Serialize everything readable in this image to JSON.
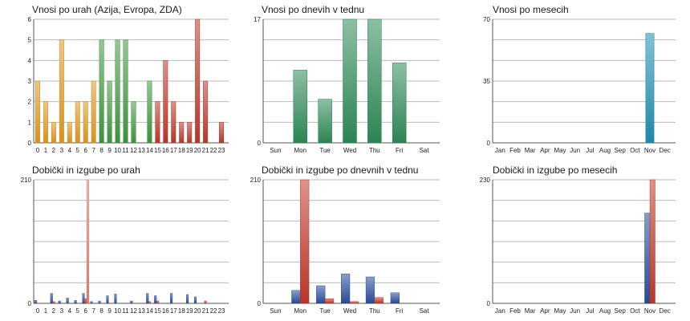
{
  "chart_data": [
    {
      "type": "bar",
      "title": "Vnosi po urah (Azija, Evropa, ZDA)",
      "categories": [
        "0",
        "1",
        "2",
        "3",
        "4",
        "5",
        "6",
        "7",
        "8",
        "9",
        "10",
        "11",
        "12",
        "13",
        "14",
        "15",
        "16",
        "17",
        "18",
        "19",
        "20",
        "21",
        "22",
        "23"
      ],
      "values": [
        3,
        2,
        1,
        5,
        1,
        2,
        2,
        3,
        5,
        3,
        5,
        5,
        2,
        0,
        3,
        2,
        4,
        2,
        1,
        1,
        6,
        3,
        0,
        1
      ],
      "bar_colors": [
        "#e09a22",
        "#e09a22",
        "#e09a22",
        "#e09a22",
        "#e09a22",
        "#e09a22",
        "#e09a22",
        "#e09a22",
        "#3e9a3e",
        "#3e9a3e",
        "#3e9a3e",
        "#3e9a3e",
        "#3e9a3e",
        "#3e9a3e",
        "#3e9a3e",
        "#c0392b",
        "#c0392b",
        "#c0392b",
        "#c0392b",
        "#c0392b",
        "#c0392b",
        "#c0392b",
        "#c0392b",
        "#c0392b"
      ],
      "ylim": [
        0,
        6
      ],
      "yticks": [
        "0",
        "1",
        "2",
        "3",
        "4",
        "5",
        "6"
      ],
      "grid": true
    },
    {
      "type": "bar",
      "title": "Vnosi po dnevih v tednu",
      "categories": [
        "Sun",
        "Mon",
        "Tue",
        "Wed",
        "Thu",
        "Fri",
        "Sat"
      ],
      "values": [
        0,
        10,
        6,
        17,
        17,
        11,
        0
      ],
      "bar_colors": [
        "#2e8b57"
      ],
      "ylim": [
        0,
        17
      ],
      "yticks": [
        "0",
        "17"
      ],
      "grid": true
    },
    {
      "type": "bar",
      "title": "Vnosi po mesecih",
      "categories": [
        "Jan",
        "Feb",
        "Mar",
        "Apr",
        "May",
        "Jun",
        "Jul",
        "Aug",
        "Sep",
        "Oct",
        "Nov",
        "Dec"
      ],
      "values": [
        0,
        0,
        0,
        0,
        0,
        0,
        0,
        0,
        0,
        0,
        62,
        0
      ],
      "bar_colors": [
        "#1f8fb0"
      ],
      "ylim": [
        0,
        70
      ],
      "yticks": [
        "0",
        "35",
        "70"
      ],
      "grid": true
    },
    {
      "type": "bar",
      "title": "Dobički in izgube po urah",
      "categories": [
        "0",
        "1",
        "2",
        "3",
        "4",
        "5",
        "6",
        "7",
        "8",
        "9",
        "10",
        "11",
        "12",
        "13",
        "14",
        "15",
        "16",
        "17",
        "18",
        "19",
        "20",
        "21",
        "22",
        "23"
      ],
      "series": [
        {
          "values": [
            5,
            0,
            17,
            4,
            9,
            5,
            17,
            3,
            4,
            13,
            16,
            0,
            4,
            0,
            17,
            13,
            0,
            17,
            0,
            15,
            11,
            0,
            0,
            0
          ],
          "color": "#2a4d9c"
        },
        {
          "values": [
            0,
            0,
            3,
            0,
            0,
            0,
            8,
            0,
            0,
            0,
            0,
            0,
            0,
            0,
            3,
            4,
            0,
            0,
            0,
            0,
            0,
            4,
            0,
            0
          ],
          "color": "#c0392b"
        },
        {
          "values": [
            0,
            0,
            0,
            0,
            0,
            0,
            210,
            0,
            0,
            0,
            0,
            0,
            0,
            0,
            0,
            0,
            0,
            0,
            0,
            0,
            0,
            0,
            0,
            0
          ],
          "color": "#e8806f"
        }
      ],
      "ylim": [
        0,
        210
      ],
      "yticks": [
        "0",
        "210"
      ],
      "grid": true
    },
    {
      "type": "bar",
      "title": "Dobički in izgube po dnevnih v tednu",
      "categories": [
        "Sun",
        "Mon",
        "Tue",
        "Wed",
        "Thu",
        "Fri",
        "Sat"
      ],
      "series": [
        {
          "values": [
            0,
            22,
            30,
            50,
            45,
            18,
            0
          ],
          "color": "#2a4d9c"
        },
        {
          "values": [
            0,
            210,
            8,
            3,
            10,
            0,
            0
          ],
          "color": "#c0392b"
        }
      ],
      "ylim": [
        0,
        210
      ],
      "yticks": [
        "0",
        "210"
      ],
      "grid": true
    },
    {
      "type": "bar",
      "title": "Dobički in izgube po mesecih",
      "categories": [
        "Jan",
        "Feb",
        "Mar",
        "Apr",
        "May",
        "Jun",
        "Jul",
        "Aug",
        "Sep",
        "Oct",
        "Nov",
        "Dec"
      ],
      "series": [
        {
          "values": [
            0,
            0,
            0,
            0,
            0,
            0,
            0,
            0,
            0,
            0,
            168,
            0
          ],
          "color": "#2a4d9c"
        },
        {
          "values": [
            0,
            0,
            0,
            0,
            0,
            0,
            0,
            0,
            0,
            0,
            230,
            0
          ],
          "color": "#c0392b"
        }
      ],
      "ylim": [
        0,
        230
      ],
      "yticks": [
        "0",
        "230"
      ],
      "grid": true
    }
  ]
}
